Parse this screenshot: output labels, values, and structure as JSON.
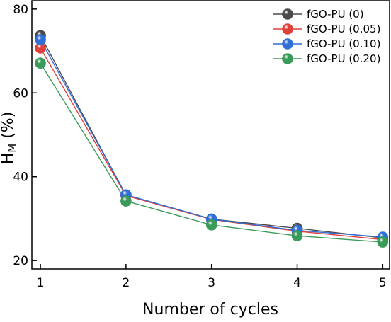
{
  "chart_data": {
    "type": "line",
    "x": [
      1,
      2,
      3,
      4,
      5
    ],
    "xlabel": "Number of cycles",
    "ylabel": "H",
    "ylabel_sub": "M",
    "ylabel_unit": " (%)",
    "xlim": [
      0.9,
      5.08
    ],
    "ylim": [
      18,
      82
    ],
    "x_ticks": [
      "1",
      "2",
      "3",
      "4",
      "5"
    ],
    "y_ticks": [
      "20",
      "40",
      "60",
      "80"
    ],
    "grid": false,
    "legend_position": "top-right",
    "series": [
      {
        "name": "fGO-PU (0)",
        "color": "#4a4a4a",
        "values": [
          73.7,
          35.6,
          29.9,
          27.7,
          25.4
        ]
      },
      {
        "name": "fGO-PU (0.05)",
        "color": "#e0403a",
        "values": [
          70.7,
          35.5,
          29.8,
          27.0,
          25.0
        ]
      },
      {
        "name": "fGO-PU (0.10)",
        "color": "#2f6fd6",
        "values": [
          72.7,
          35.7,
          29.9,
          27.2,
          25.6
        ]
      },
      {
        "name": "fGO-PU (0.20)",
        "color": "#3a9a5a",
        "values": [
          67.1,
          34.2,
          28.5,
          25.9,
          24.4
        ]
      }
    ]
  }
}
